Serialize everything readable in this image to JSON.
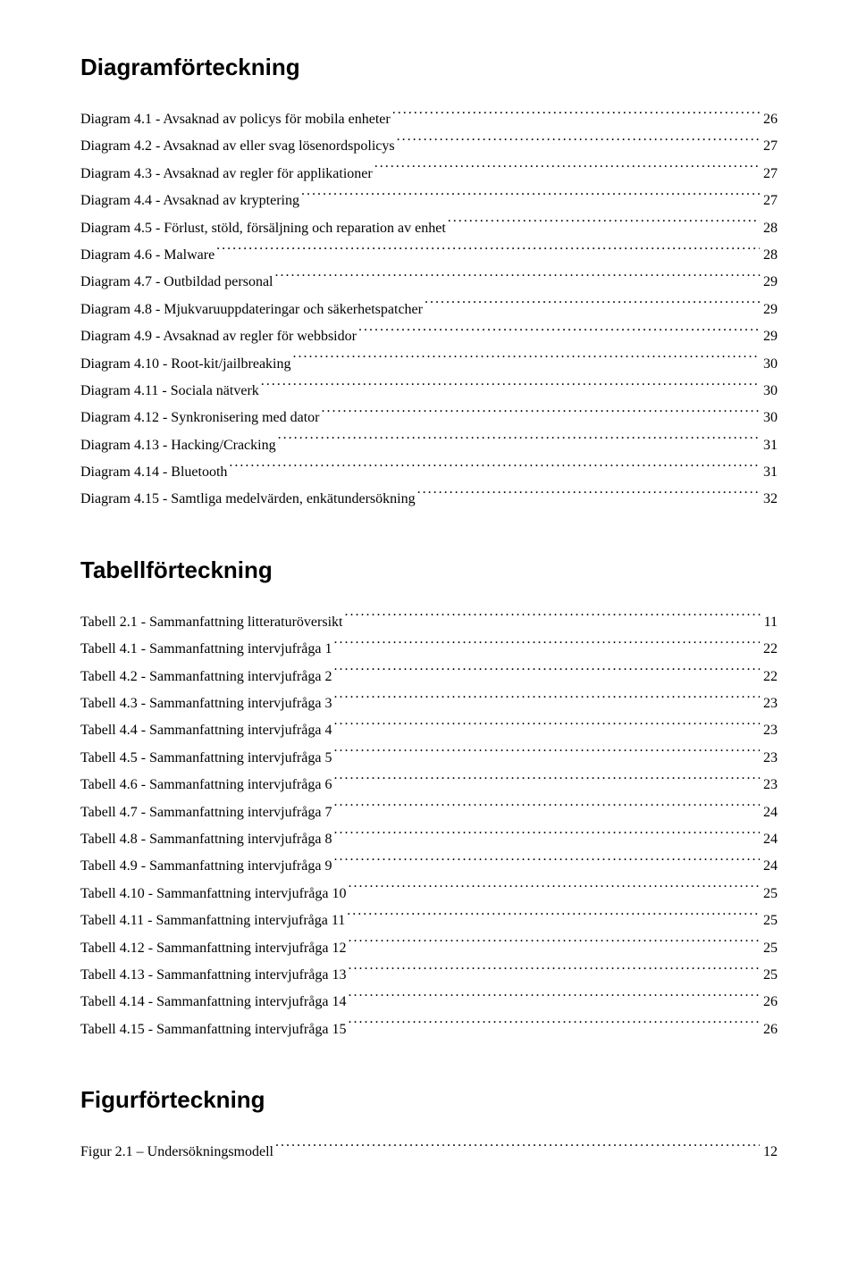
{
  "sections": [
    {
      "heading": "Diagramförteckning",
      "entries": [
        {
          "label": "Diagram 4.1 - Avsaknad av policys för mobila enheter",
          "page": "26"
        },
        {
          "label": "Diagram 4.2 - Avsaknad av eller svag lösenordspolicys",
          "page": "27"
        },
        {
          "label": "Diagram 4.3 - Avsaknad av regler för applikationer",
          "page": "27"
        },
        {
          "label": "Diagram 4.4 - Avsaknad av kryptering",
          "page": "27"
        },
        {
          "label": "Diagram 4.5 - Förlust, stöld, försäljning och reparation av enhet",
          "page": "28"
        },
        {
          "label": "Diagram 4.6 - Malware",
          "page": "28"
        },
        {
          "label": "Diagram 4.7 - Outbildad personal",
          "page": "29"
        },
        {
          "label": "Diagram 4.8 - Mjukvaruuppdateringar och säkerhetspatcher",
          "page": "29"
        },
        {
          "label": "Diagram 4.9 - Avsaknad av regler för webbsidor",
          "page": "29"
        },
        {
          "label": "Diagram 4.10 - Root-kit/jailbreaking",
          "page": "30"
        },
        {
          "label": "Diagram 4.11 - Sociala nätverk",
          "page": "30"
        },
        {
          "label": "Diagram 4.12 - Synkronisering med dator",
          "page": "30"
        },
        {
          "label": "Diagram 4.13 - Hacking/Cracking",
          "page": "31"
        },
        {
          "label": "Diagram 4.14 - Bluetooth",
          "page": "31"
        },
        {
          "label": "Diagram 4.15 - Samtliga medelvärden, enkätundersökning",
          "page": "32"
        }
      ]
    },
    {
      "heading": "Tabellförteckning",
      "entries": [
        {
          "label": "Tabell 2.1 - Sammanfattning litteraturöversikt",
          "page": "11"
        },
        {
          "label": "Tabell 4.1 - Sammanfattning intervjufråga 1",
          "page": "22"
        },
        {
          "label": "Tabell 4.2 - Sammanfattning intervjufråga 2",
          "page": "22"
        },
        {
          "label": "Tabell 4.3 - Sammanfattning intervjufråga 3",
          "page": "23"
        },
        {
          "label": "Tabell 4.4 - Sammanfattning intervjufråga 4",
          "page": "23"
        },
        {
          "label": "Tabell 4.5 - Sammanfattning intervjufråga 5",
          "page": "23"
        },
        {
          "label": "Tabell 4.6 - Sammanfattning intervjufråga 6",
          "page": "23"
        },
        {
          "label": "Tabell 4.7 - Sammanfattning intervjufråga 7",
          "page": "24"
        },
        {
          "label": "Tabell 4.8 - Sammanfattning intervjufråga 8",
          "page": "24"
        },
        {
          "label": "Tabell 4.9 - Sammanfattning intervjufråga 9",
          "page": "24"
        },
        {
          "label": "Tabell 4.10 - Sammanfattning intervjufråga 10",
          "page": "25"
        },
        {
          "label": "Tabell 4.11 - Sammanfattning intervjufråga 11",
          "page": "25"
        },
        {
          "label": "Tabell 4.12 - Sammanfattning intervjufråga 12",
          "page": "25"
        },
        {
          "label": "Tabell 4.13 - Sammanfattning intervjufråga 13",
          "page": "25"
        },
        {
          "label": "Tabell 4.14 - Sammanfattning intervjufråga 14",
          "page": "26"
        },
        {
          "label": "Tabell 4.15 - Sammanfattning intervjufråga 15",
          "page": "26"
        }
      ]
    },
    {
      "heading": "Figurförteckning",
      "entries": [
        {
          "label": "Figur 2.1 – Undersökningsmodell",
          "page": "12"
        }
      ]
    }
  ],
  "colors": {
    "text": "#000000",
    "background": "#ffffff"
  },
  "typography": {
    "body_font": "Times New Roman",
    "body_size_pt": 12,
    "heading_font": "Arial",
    "heading_size_pt": 20,
    "heading_weight": "bold"
  }
}
